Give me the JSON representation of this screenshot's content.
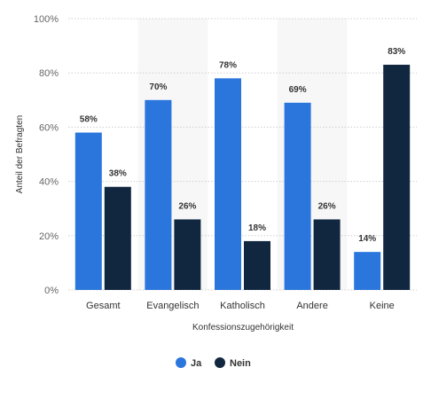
{
  "chart_data": {
    "type": "bar",
    "xlabel": "Konfessionszugehörigkeit",
    "ylabel": "Anteil der Befragten",
    "categories": [
      "Gesamt",
      "Evangelisch",
      "Katholisch",
      "Andere",
      "Keine"
    ],
    "series": [
      {
        "name": "Ja",
        "values": [
          58,
          70,
          78,
          69,
          14
        ],
        "color": "#2a76dd"
      },
      {
        "name": "Nein",
        "values": [
          38,
          26,
          18,
          26,
          83
        ],
        "color": "#112740"
      }
    ],
    "ylim": [
      0,
      100
    ],
    "yticks": [
      0,
      20,
      40,
      60,
      80,
      100
    ],
    "ytick_suffix": "%",
    "value_suffix": "%",
    "grid": true,
    "legend_position": "bottom-center"
  }
}
